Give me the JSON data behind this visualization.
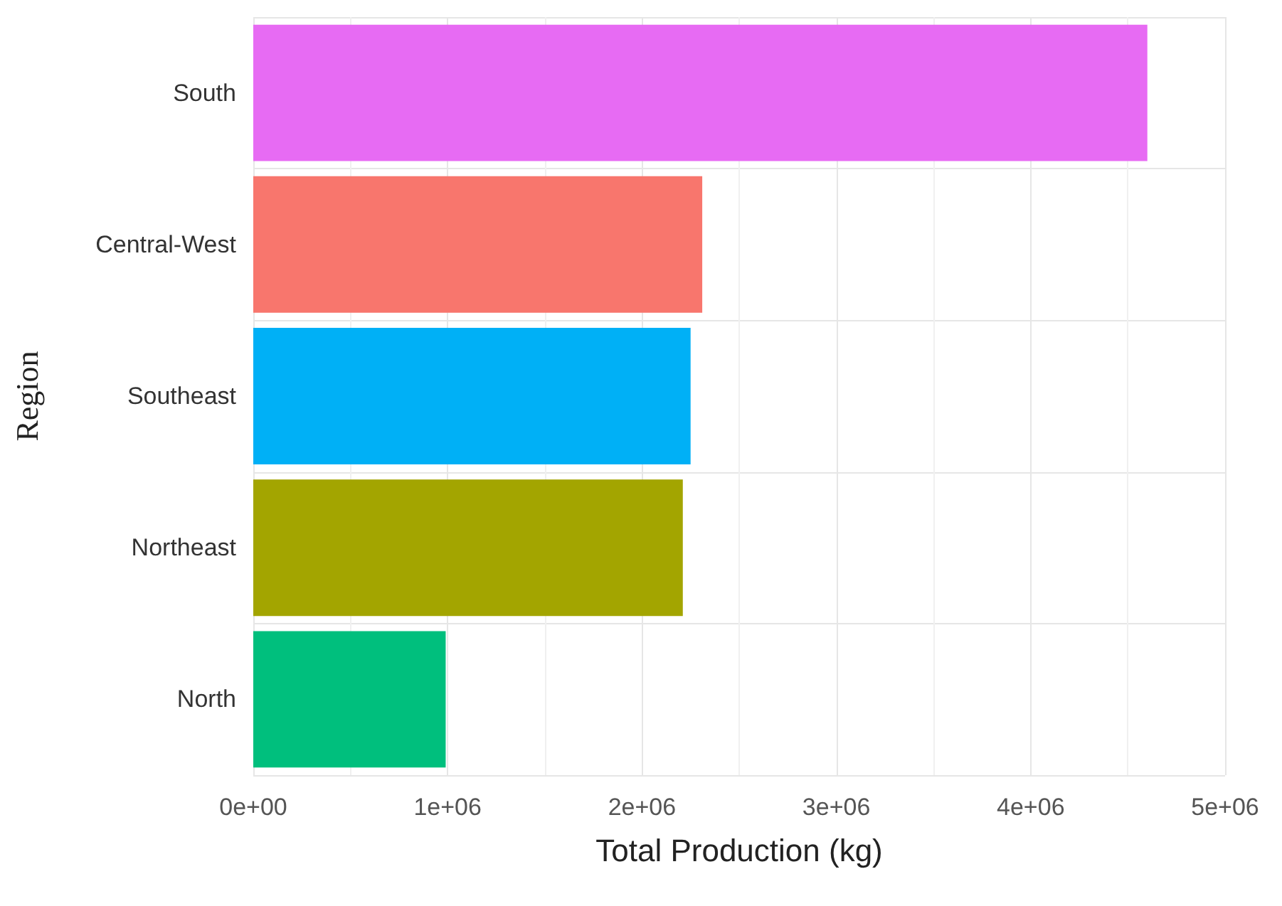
{
  "chart_data": {
    "type": "bar",
    "orientation": "horizontal",
    "xlabel": "Total Production (kg)",
    "ylabel": "Region",
    "categories": [
      "South",
      "Central-West",
      "Southeast",
      "Northeast",
      "North"
    ],
    "values": [
      4600000,
      2310000,
      2250000,
      2210000,
      990000
    ],
    "colors": [
      "#e76bf3",
      "#f8766d",
      "#00b0f6",
      "#a3a500",
      "#00bf7d"
    ],
    "xlim": [
      0,
      5000000
    ],
    "xticks": [
      {
        "value": 0,
        "label": "0e+00"
      },
      {
        "value": 1000000,
        "label": "1e+06"
      },
      {
        "value": 2000000,
        "label": "2e+06"
      },
      {
        "value": 3000000,
        "label": "3e+06"
      },
      {
        "value": 4000000,
        "label": "4e+06"
      },
      {
        "value": 5000000,
        "label": "5e+06"
      }
    ],
    "grid": true
  }
}
